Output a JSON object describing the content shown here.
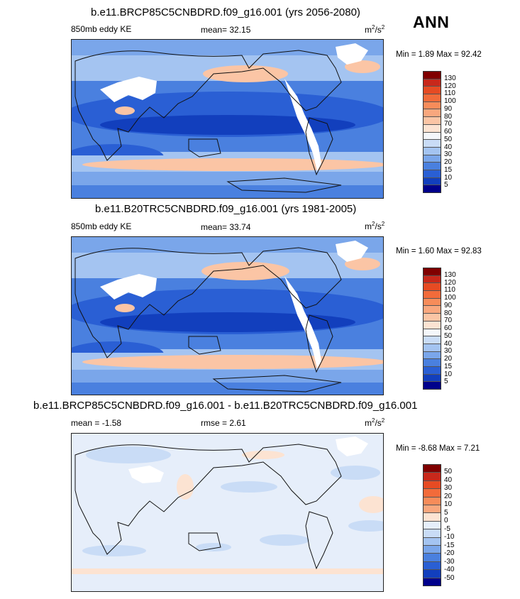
{
  "season": "ANN",
  "panels": [
    {
      "title": "b.e11.BRCP85C5CNBDRD.f09_g16.001 (yrs 2056-2080)",
      "left_label": "850mb eddy KE",
      "center_label": "mean=  32.15",
      "units_base": "m",
      "units_exp": "2",
      "units_tail": "/s",
      "units_exp2": "2",
      "minmax": "Min =  1.89 Max =  92.42",
      "levels": [
        "130",
        "120",
        "110",
        "100",
        "90",
        "80",
        "70",
        "60",
        "50",
        "40",
        "30",
        "20",
        "15",
        "10",
        "5"
      ],
      "colors": [
        "#800000",
        "#c8281b",
        "#e64b23",
        "#f26b3a",
        "#f78c5a",
        "#f9a77e",
        "#fbc5a5",
        "#fce3d2",
        "#f4f7fb",
        "#c9dcf6",
        "#a4c4f1",
        "#7aa6ea",
        "#4a80df",
        "#2a5fd4",
        "#123fbd",
        "#00008b"
      ],
      "kind": "ke"
    },
    {
      "title": "b.e11.B20TRC5CNBDRD.f09_g16.001 (yrs 1981-2005)",
      "left_label": "850mb eddy KE",
      "center_label": "mean=  33.74",
      "units_base": "m",
      "units_exp": "2",
      "units_tail": "/s",
      "units_exp2": "2",
      "minmax": "Min =  1.60 Max =  92.83",
      "levels": [
        "130",
        "120",
        "110",
        "100",
        "90",
        "80",
        "70",
        "60",
        "50",
        "40",
        "30",
        "20",
        "15",
        "10",
        "5"
      ],
      "colors": [
        "#800000",
        "#c8281b",
        "#e64b23",
        "#f26b3a",
        "#f78c5a",
        "#f9a77e",
        "#fbc5a5",
        "#fce3d2",
        "#f4f7fb",
        "#c9dcf6",
        "#a4c4f1",
        "#7aa6ea",
        "#4a80df",
        "#2a5fd4",
        "#123fbd",
        "#00008b"
      ],
      "kind": "ke"
    },
    {
      "title": "b.e11.BRCP85C5CNBDRD.f09_g16.001 - b.e11.B20TRC5CNBDRD.f09_g16.001",
      "left_label": "mean =  -1.58",
      "center_label": "rmse =   2.61",
      "units_base": "m",
      "units_exp": "2",
      "units_tail": "/s",
      "units_exp2": "2",
      "minmax": "Min =  -8.68 Max =   7.21",
      "levels": [
        "50",
        "40",
        "30",
        "20",
        "10",
        "5",
        "0",
        "-5",
        "-10",
        "-15",
        "-20",
        "-30",
        "-40",
        "-50"
      ],
      "colors": [
        "#800000",
        "#c8281b",
        "#e64b23",
        "#f26b3a",
        "#f78c5a",
        "#f9a77e",
        "#fce3d2",
        "#e6eefa",
        "#c9dcf6",
        "#a4c4f1",
        "#7aa6ea",
        "#4a80df",
        "#2a5fd4",
        "#123fbd",
        "#00008b"
      ],
      "kind": "diff"
    }
  ]
}
